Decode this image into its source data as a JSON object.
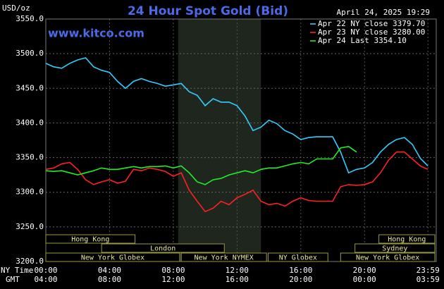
{
  "chart_data": {
    "type": "line",
    "title": "24 Hour Spot Gold (Bid)",
    "y_label": "USD/oz",
    "timestamp": "April 24, 2025 19:29",
    "watermark": "www.kitco.com",
    "x_row_label": "NY Time",
    "x2_row_label": "GMT",
    "x": [
      0,
      0.5,
      1,
      1.5,
      2,
      2.5,
      3,
      3.5,
      4,
      4.5,
      5,
      5.5,
      6,
      6.5,
      7,
      7.5,
      8,
      8.5,
      9,
      9.5,
      10,
      10.5,
      11,
      11.5,
      12,
      12.5,
      13,
      13.5,
      14,
      14.5,
      15,
      15.5,
      16,
      16.5,
      17,
      17.5,
      18,
      18.5,
      19,
      19.5,
      20,
      20.5,
      21,
      21.5,
      22,
      22.5,
      23,
      23.5,
      23.98
    ],
    "xlim": [
      0,
      24.5
    ],
    "xticks": [
      {
        "value": 0,
        "label": "00:00"
      },
      {
        "value": 4,
        "label": "04:00"
      },
      {
        "value": 8,
        "label": "08:00"
      },
      {
        "value": 12,
        "label": "12:00"
      },
      {
        "value": 16,
        "label": "16:00"
      },
      {
        "value": 20,
        "label": "20:00"
      },
      {
        "value": 23.98,
        "label": "23:59"
      }
    ],
    "x2tick_labels": [
      "04:00",
      "08:00",
      "12:00",
      "16:00",
      "20:00",
      "00:00",
      "03:59"
    ],
    "ylim": [
      3200,
      3550
    ],
    "yticks": [
      {
        "value": 3200,
        "label": "3200.0"
      },
      {
        "value": 3250,
        "label": "3250.0"
      },
      {
        "value": 3300,
        "label": "3300.0"
      },
      {
        "value": 3350,
        "label": "3350.0"
      },
      {
        "value": 3400,
        "label": "3400.0"
      },
      {
        "value": 3450,
        "label": "3450.0"
      },
      {
        "value": 3500,
        "label": "3500.0"
      },
      {
        "value": 3550,
        "label": "3550.0"
      }
    ],
    "grid": true,
    "legend": "top-right",
    "shaded_x": [
      8.3,
      13.5
    ],
    "sessions": [
      {
        "label": "Hong Kong",
        "row": 0,
        "start": 0,
        "end": 5.6
      },
      {
        "label": "Hong Kong",
        "row": 0,
        "start": 20.9,
        "end": 24.5
      },
      {
        "label": "London",
        "row": 1,
        "start": 3.5,
        "end": 11.2
      },
      {
        "label": "Sydney",
        "row": 1,
        "start": 19.4,
        "end": 24.5
      },
      {
        "label": "New York Globex",
        "row": 2,
        "start": 0,
        "end": 8.4
      },
      {
        "label": "New York NYMEX",
        "row": 2,
        "start": 8.5,
        "end": 13.85
      },
      {
        "label": "NY Globex",
        "row": 2,
        "start": 13.95,
        "end": 17.7
      },
      {
        "label": "New York Globex",
        "row": 2,
        "start": 18.5,
        "end": 24.5
      }
    ],
    "series": [
      {
        "name": "Apr 22 NY close 3379.70",
        "color": "#33ccff",
        "values": [
          3486,
          3481,
          3479,
          3486,
          3491,
          3494,
          3481,
          3476,
          3473,
          3460,
          3450,
          3460,
          3464,
          3460,
          3457,
          3453,
          3455,
          3457,
          3445,
          3440,
          3425,
          3435,
          3430,
          3430,
          3425,
          3410,
          3389,
          3394,
          3404,
          3399,
          3389,
          3384,
          3376,
          3379,
          3380,
          3380,
          3380,
          3358,
          3328,
          3333,
          3335,
          3343,
          3358,
          3369,
          3376,
          3379,
          3369,
          3349,
          3338
        ]
      },
      {
        "name": "Apr 23 NY close 3280.00",
        "color": "#ff2020",
        "values": [
          3333,
          3335,
          3341,
          3343,
          3333,
          3318,
          3311,
          3315,
          3318,
          3313,
          3316,
          3333,
          3331,
          3335,
          3333,
          3330,
          3323,
          3328,
          3303,
          3287,
          3272,
          3277,
          3287,
          3282,
          3292,
          3297,
          3303,
          3287,
          3282,
          3284,
          3280,
          3287,
          3292,
          3288,
          3287,
          3287,
          3287,
          3308,
          3311,
          3310,
          3311,
          3315,
          3328,
          3346,
          3358,
          3358,
          3348,
          3338,
          3333
        ]
      },
      {
        "name": "Apr 24 Last 3354.10",
        "color": "#22ee22",
        "values": [
          3331,
          3330,
          3331,
          3328,
          3325,
          3328,
          3331,
          3335,
          3333,
          3333,
          3335,
          3337,
          3335,
          3337,
          3337,
          3338,
          3335,
          3338,
          3328,
          3315,
          3311,
          3318,
          3320,
          3325,
          3328,
          3331,
          3328,
          3333,
          3335,
          3335,
          3338,
          3341,
          3343,
          3341,
          3348,
          3348,
          3348,
          3364,
          3366,
          3358,
          null,
          null,
          null,
          null,
          null,
          null,
          null,
          null,
          null
        ]
      }
    ]
  }
}
